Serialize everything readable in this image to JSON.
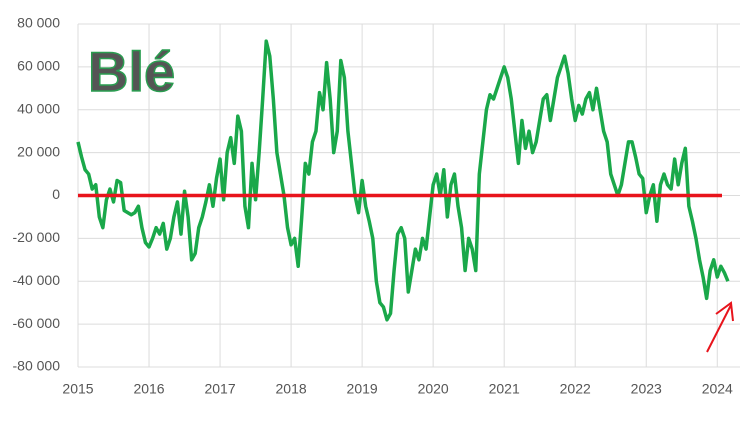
{
  "chart_data": {
    "type": "line",
    "title": "Blé",
    "title_color": "#72d196",
    "x": [
      2015,
      2015.05,
      2015.1,
      2015.15,
      2015.2,
      2015.25,
      2015.3,
      2015.35,
      2015.4,
      2015.45,
      2015.5,
      2015.55,
      2015.6,
      2015.65,
      2015.7,
      2015.75,
      2015.8,
      2015.85,
      2015.9,
      2015.95,
      2016,
      2016.05,
      2016.1,
      2016.15,
      2016.2,
      2016.25,
      2016.3,
      2016.35,
      2016.4,
      2016.45,
      2016.5,
      2016.55,
      2016.6,
      2016.65,
      2016.7,
      2016.75,
      2016.8,
      2016.85,
      2016.9,
      2016.95,
      2017,
      2017.05,
      2017.1,
      2017.15,
      2017.2,
      2017.25,
      2017.3,
      2017.35,
      2017.4,
      2017.45,
      2017.5,
      2017.55,
      2017.6,
      2017.65,
      2017.7,
      2017.75,
      2017.8,
      2017.85,
      2017.9,
      2017.95,
      2018,
      2018.05,
      2018.1,
      2018.15,
      2018.2,
      2018.25,
      2018.3,
      2018.35,
      2018.4,
      2018.45,
      2018.5,
      2018.55,
      2018.6,
      2018.65,
      2018.7,
      2018.75,
      2018.8,
      2018.85,
      2018.9,
      2018.95,
      2019,
      2019.05,
      2019.1,
      2019.15,
      2019.2,
      2019.25,
      2019.3,
      2019.35,
      2019.4,
      2019.45,
      2019.5,
      2019.55,
      2019.6,
      2019.65,
      2019.7,
      2019.75,
      2019.8,
      2019.85,
      2019.9,
      2019.95,
      2020,
      2020.05,
      2020.1,
      2020.15,
      2020.2,
      2020.25,
      2020.3,
      2020.35,
      2020.4,
      2020.45,
      2020.5,
      2020.55,
      2020.6,
      2020.65,
      2020.7,
      2020.75,
      2020.8,
      2020.85,
      2020.9,
      2020.95,
      2021,
      2021.05,
      2021.1,
      2021.15,
      2021.2,
      2021.25,
      2021.3,
      2021.35,
      2021.4,
      2021.45,
      2021.5,
      2021.55,
      2021.6,
      2021.65,
      2021.7,
      2021.75,
      2021.8,
      2021.85,
      2021.9,
      2021.95,
      2022,
      2022.05,
      2022.1,
      2022.15,
      2022.2,
      2022.25,
      2022.3,
      2022.35,
      2022.4,
      2022.45,
      2022.5,
      2022.55,
      2022.6,
      2022.65,
      2022.7,
      2022.75,
      2022.8,
      2022.85,
      2022.9,
      2022.95,
      2023,
      2023.05,
      2023.1,
      2023.15,
      2023.2,
      2023.25,
      2023.3,
      2023.35,
      2023.4,
      2023.45,
      2023.5,
      2023.55,
      2023.6,
      2023.65,
      2023.7,
      2023.75,
      2023.8,
      2023.85,
      2023.9,
      2023.95,
      2024,
      2024.05,
      2024.1,
      2024.15
    ],
    "series": [
      {
        "color": "#1aa84a",
        "values": [
          25000,
          18000,
          12000,
          10000,
          3000,
          5000,
          -10000,
          -15000,
          -2000,
          3000,
          -3000,
          7000,
          6000,
          -7000,
          -8000,
          -9000,
          -8000,
          -5000,
          -15000,
          -22000,
          -24000,
          -20000,
          -15000,
          -18000,
          -13000,
          -25000,
          -20000,
          -10000,
          -3000,
          -18000,
          2000,
          -10000,
          -30000,
          -27000,
          -15000,
          -10000,
          -3000,
          5000,
          -5000,
          8000,
          17000,
          -2000,
          20000,
          27000,
          15000,
          37000,
          30000,
          -5000,
          -15000,
          15000,
          -2000,
          20000,
          45000,
          72000,
          65000,
          45000,
          20000,
          10000,
          0,
          -15000,
          -23000,
          -20000,
          -33000,
          -10000,
          15000,
          10000,
          25000,
          30000,
          48000,
          40000,
          62000,
          45000,
          20000,
          30000,
          63000,
          55000,
          30000,
          15000,
          0,
          -8000,
          7000,
          -5000,
          -12000,
          -20000,
          -40000,
          -50000,
          -52000,
          -58000,
          -55000,
          -35000,
          -18000,
          -15000,
          -20000,
          -45000,
          -35000,
          -25000,
          -30000,
          -20000,
          -25000,
          -10000,
          5000,
          10000,
          0,
          12000,
          -10000,
          5000,
          10000,
          -5000,
          -15000,
          -35000,
          -20000,
          -25000,
          -35000,
          10000,
          25000,
          40000,
          47000,
          45000,
          50000,
          55000,
          60000,
          55000,
          45000,
          30000,
          15000,
          35000,
          22000,
          30000,
          20000,
          25000,
          35000,
          45000,
          47000,
          35000,
          45000,
          55000,
          60000,
          65000,
          57000,
          45000,
          35000,
          42000,
          38000,
          45000,
          48000,
          40000,
          50000,
          40000,
          30000,
          25000,
          10000,
          5000,
          0,
          5000,
          15000,
          25000,
          25000,
          18000,
          10000,
          8000,
          -8000,
          0,
          5000,
          -12000,
          5000,
          10000,
          5000,
          3000,
          17000,
          5000,
          15000,
          22000,
          -5000,
          -12000,
          -20000,
          -30000,
          -38000,
          -48000,
          -35000,
          -30000,
          -38000,
          -33000,
          -36000,
          -40000
        ]
      }
    ],
    "hline": {
      "value": 0,
      "color": "#e8141c"
    },
    "xlim": [
      2015,
      2024.32
    ],
    "xticks": [
      2015,
      2016,
      2017,
      2018,
      2019,
      2020,
      2021,
      2022,
      2023,
      2024
    ],
    "ylim": [
      -80000,
      80000
    ],
    "yticks": [
      {
        "value": -80000,
        "label": "-80 000"
      },
      {
        "value": -60000,
        "label": "-60 000"
      },
      {
        "value": -40000,
        "label": "-40 000"
      },
      {
        "value": -20000,
        "label": "-20 000"
      },
      0,
      {
        "value": 20000,
        "label": "20 000"
      },
      {
        "value": 40000,
        "label": "40 000"
      },
      {
        "value": 60000,
        "label": "60 000"
      },
      {
        "value": 80000,
        "label": "80 000"
      }
    ],
    "grid": true
  }
}
